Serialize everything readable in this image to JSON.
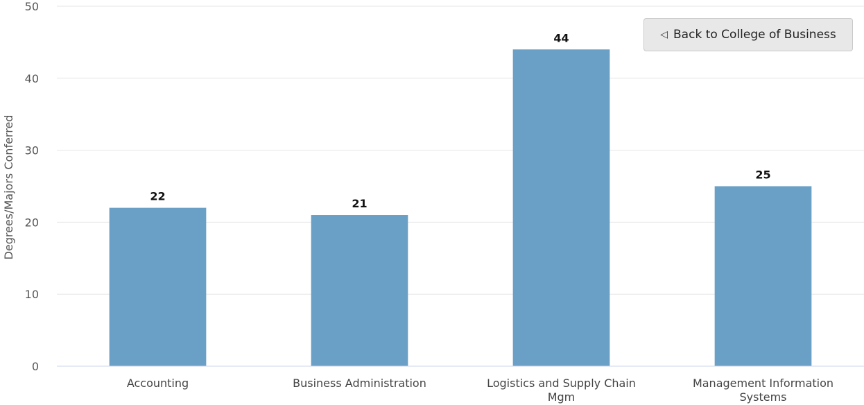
{
  "chart_data": {
    "type": "bar",
    "title": "",
    "xlabel": "",
    "ylabel": "Degrees/Majors Conferred",
    "categories": [
      "Accounting",
      "Business Administration",
      "Logistics and Supply Chain Mgm",
      "Management Information Systems"
    ],
    "category_lines": [
      [
        "Accounting"
      ],
      [
        "Business Administration"
      ],
      [
        "Logistics and Supply Chain",
        "Mgm"
      ],
      [
        "Management Information",
        "Systems"
      ]
    ],
    "values": [
      22,
      21,
      44,
      25
    ],
    "ylim": [
      0,
      50
    ],
    "yticks": [
      0,
      10,
      20,
      30,
      40,
      50
    ],
    "grid": true,
    "bar_color": "#6aa0c6",
    "data_labels": true
  },
  "controls": {
    "back_button_label": "Back to College of Business",
    "back_button_icon": "back-triangle-icon"
  }
}
